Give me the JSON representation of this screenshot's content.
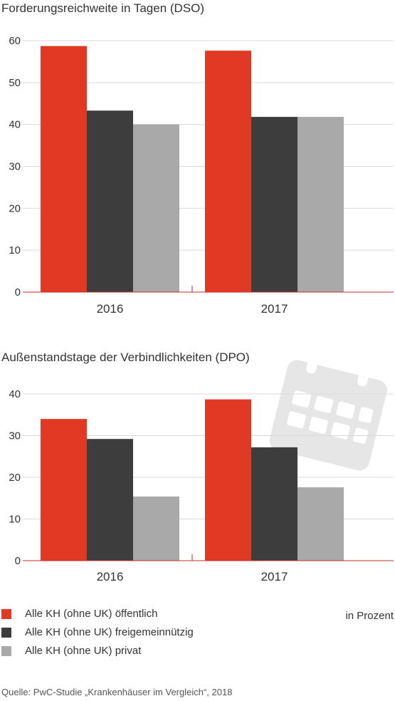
{
  "colors": {
    "series": [
      "#e03a25",
      "#3d3d3d",
      "#a9a9aa"
    ],
    "grid": "#d9d9d9",
    "axis": "#c7292b",
    "text": "#333333"
  },
  "chart_data": [
    {
      "type": "bar",
      "title": "Forderungsreichweite in Tagen (DSO)",
      "categories": [
        "2016",
        "2017"
      ],
      "ylim": [
        0,
        60
      ],
      "yticks": [
        0,
        10,
        20,
        30,
        40,
        50,
        60
      ],
      "grid": true,
      "series": [
        {
          "name": "Alle KH (ohne UK) öffentlich",
          "values": [
            58.7,
            57.6
          ]
        },
        {
          "name": "Alle KH (ohne UK) freigemeinnützig",
          "values": [
            43.3,
            41.8
          ]
        },
        {
          "name": "Alle KH (ohne UK) privat",
          "values": [
            40.0,
            41.8
          ]
        }
      ]
    },
    {
      "type": "bar",
      "title": "Außenstandstage der Verbindlichkeiten (DPO)",
      "categories": [
        "2016",
        "2017"
      ],
      "ylim": [
        0,
        40
      ],
      "yticks": [
        0,
        10,
        20,
        30,
        40
      ],
      "grid": true,
      "series": [
        {
          "name": "Alle KH (ohne UK) öffentlich",
          "values": [
            34.0,
            38.7
          ]
        },
        {
          "name": "Alle KH (ohne UK) freigemeinnützig",
          "values": [
            29.2,
            27.2
          ]
        },
        {
          "name": "Alle KH (ohne UK) privat",
          "values": [
            15.4,
            17.6
          ]
        }
      ]
    }
  ],
  "legend": {
    "items": [
      "Alle KH (ohne UK) öffentlich",
      "Alle KH (ohne UK) freigemeinnützig",
      "Alle KH (ohne UK) privat"
    ],
    "unit_note": "in Prozent",
    "position": "bottom-left"
  },
  "decoration": {
    "icon": "calendar-icon",
    "color": "#e6e6e6"
  },
  "source": "Quelle: PwC-Studie „Krankenhäuser im Vergleich“, 2018"
}
